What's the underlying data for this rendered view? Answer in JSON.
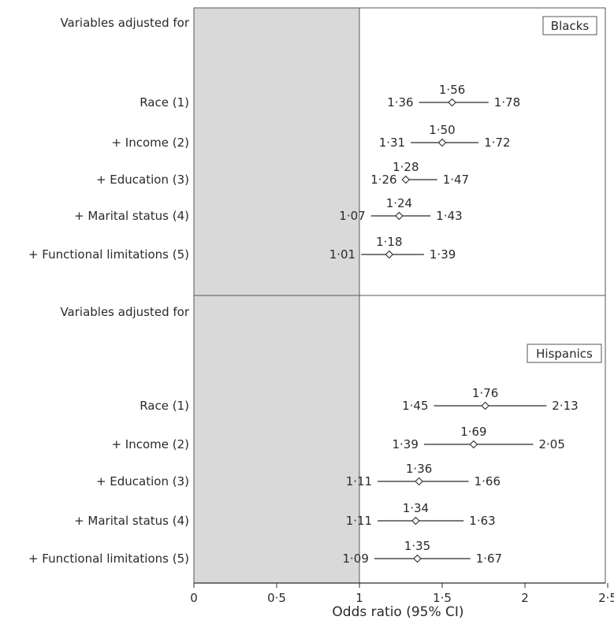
{
  "chart_data": {
    "type": "forest",
    "xlabel": "Odds ratio (95% CI)",
    "xlim": [
      0,
      2.5
    ],
    "x_ticks": [
      "0",
      "0·5",
      "1",
      "1·5",
      "2",
      "2·5"
    ],
    "shaded_region": [
      0,
      1
    ],
    "reference_line": 1,
    "panels": [
      {
        "group": "Blacks",
        "header": "Variables adjusted for",
        "rows": [
          {
            "label": "Race (1)",
            "or": 1.56,
            "lower": 1.36,
            "upper": 1.78,
            "or_text": "1·56",
            "lower_text": "1·36",
            "upper_text": "1·78"
          },
          {
            "label": "+ Income (2)",
            "or": 1.5,
            "lower": 1.31,
            "upper": 1.72,
            "or_text": "1·50",
            "lower_text": "1·31",
            "upper_text": "1·72"
          },
          {
            "label": "+ Education (3)",
            "or": 1.28,
            "lower": 1.26,
            "upper": 1.47,
            "or_text": "1·28",
            "lower_text": "1·26",
            "upper_text": "1·47"
          },
          {
            "label": "+ Marital status (4)",
            "or": 1.24,
            "lower": 1.07,
            "upper": 1.43,
            "or_text": "1·24",
            "lower_text": "1·07",
            "upper_text": "1·43"
          },
          {
            "label": "+ Functional limitations (5)",
            "or": 1.18,
            "lower": 1.01,
            "upper": 1.39,
            "or_text": "1·18",
            "lower_text": "1·01",
            "upper_text": "1·39"
          }
        ]
      },
      {
        "group": "Hispanics",
        "header": "Variables adjusted for",
        "rows": [
          {
            "label": "Race (1)",
            "or": 1.76,
            "lower": 1.45,
            "upper": 2.13,
            "or_text": "1·76",
            "lower_text": "1·45",
            "upper_text": "2·13"
          },
          {
            "label": "+ Income (2)",
            "or": 1.69,
            "lower": 1.39,
            "upper": 2.05,
            "or_text": "1·69",
            "lower_text": "1·39",
            "upper_text": "2·05"
          },
          {
            "label": "+ Education (3)",
            "or": 1.36,
            "lower": 1.11,
            "upper": 1.66,
            "or_text": "1·36",
            "lower_text": "1·11",
            "upper_text": "1·66"
          },
          {
            "label": "+ Marital status (4)",
            "or": 1.34,
            "lower": 1.11,
            "upper": 1.63,
            "or_text": "1·34",
            "lower_text": "1·11",
            "upper_text": "1·63"
          },
          {
            "label": "+ Functional limitations (5)",
            "or": 1.35,
            "lower": 1.09,
            "upper": 1.67,
            "or_text": "1·35",
            "lower_text": "1·09",
            "upper_text": "1·67"
          }
        ]
      }
    ]
  },
  "colors": {
    "shade": "#d9d9d9",
    "ink": "#2a2a2a",
    "frame": "#555555"
  }
}
